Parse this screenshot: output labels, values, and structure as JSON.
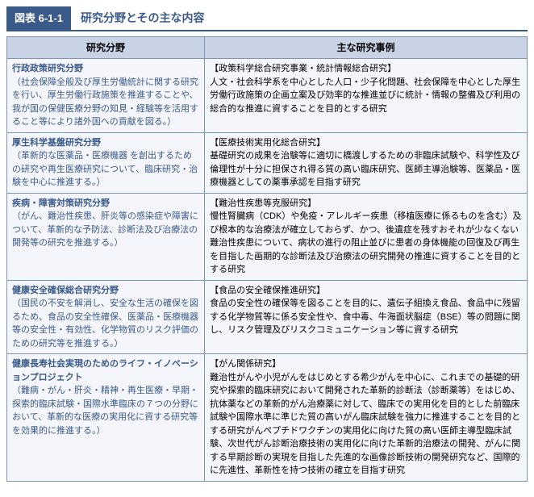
{
  "figure_tag": "図表 6-1-1",
  "figure_title": "研究分野とその主な内容",
  "headers": {
    "field": "研究分野",
    "cases": "主な研究事例"
  },
  "rows": [
    {
      "field_title": "行政政策研究分野",
      "field_desc": "（社会保障全般及び厚生労働統計に関する研究を行い、厚生労働行政施策を推進することや、我が国の保健医療分野の知見・経験等を活用すること等により諸外国への貢献を図る。）",
      "case_title": "【政策科学総合研究事業・統計情報総合研究】",
      "case_desc": "人文・社会科学系を中心とした人口・少子化問題、社会保障を中心とした厚生労働行政施策の企画立案及び効率的な推進並びに統計・情報の整備及び利用の総合的な推進に資することを目的とする研究"
    },
    {
      "field_title": "厚生科学基盤研究分野",
      "field_desc": "（革新的な医薬品・医療機器 を創出するための研究や再生医療研究について、臨床研究・治験を中心に推進する。）",
      "case_title": "【医療技術実用化総合研究】",
      "case_desc": "基礎研究の成果を治験等に適切に橋渡しするための非臨床試験や、科学性及び倫理性が十分に担保され得る質の高い臨床研究、医師主導治験等、医薬品・医療機器としての薬事承認を目指す研究"
    },
    {
      "field_title": "疾病・障害対策研究分野",
      "field_desc": "（がん、難治性疾患、肝炎等の感染症や障害について、革新的な予防法、診断法及び治療法の開発等の研究を推進する。）",
      "case_title": "【難治性疾患等克服研究】",
      "case_desc": "慢性腎臓病（CDK）や免疫・アレルギー疾患（移植医療に係るものを含む）及び根本的な治療法が確立しておらず、かつ、後遺症を残すおそれが少なくない難治性疾患について、病状の進行の阻止並びに患者の身体機能の回復及び再生を目指した画期的な診断法及び治療法の研究開発の推進に資することを目的とする研究"
    },
    {
      "field_title": "健康安全確保総合研究分野",
      "field_desc": "（国民の不安を解消し、安全な生活の確保を図るため、食品の安全性確保、医薬品・医療機器等の安全性・有効性、化学物質のリスク評価のための研究等を推進する。）",
      "case_title": "【食品の安全確保推進研究】",
      "case_desc": "食品の安全性の確保等を図ることを目的に、遺伝子組換え食品、食品中に残留する化学物質等に係る安全性や、食中毒、牛海面状脳症（BSE）等の問題に関し、リスク管理及びリスクコミュニケーション等に資する研究"
    },
    {
      "field_title": "健康長寿社会実現のためのライフ・イノベーションプロジェクト",
      "field_desc": "（難病・がん・肝炎・精神・再生医療・早期・探索的臨床試験・国際水準臨床の７つの分野において、革新的な医療の実用化に資する研究等を効果的に推進する。）",
      "case_title": "【がん関係研究】",
      "case_desc": "難治性がんや小児がんをはじめとする希少がんを中心に、これまでの基礎的研究や探索的臨床研究において開発された革新的診断法（診断薬等）をはじめ、抗体薬などの革新的がん治療薬に対して、臨床での実用化を目的とした前臨床試験や国際水準に準じた質の高いがん臨床試験を強力に推進することを目的とする研究がんペプチドワクチンの実用化に向けた質の高い医師主導型臨床試験、次世代がん診断治療技術の実用化に向けた革新的治療法の開発、がんに関する早期診断の実現を目指した先進的な画像診断技術の開発研究など、国際的に先進性、革新性を持つ技術の確立を目指す研究"
    }
  ],
  "colors": {
    "accent": "#3a5a8a",
    "header_bg": "#c8d4e6",
    "cell_bg": "#f4f6fb",
    "border": "#7a94b8"
  }
}
